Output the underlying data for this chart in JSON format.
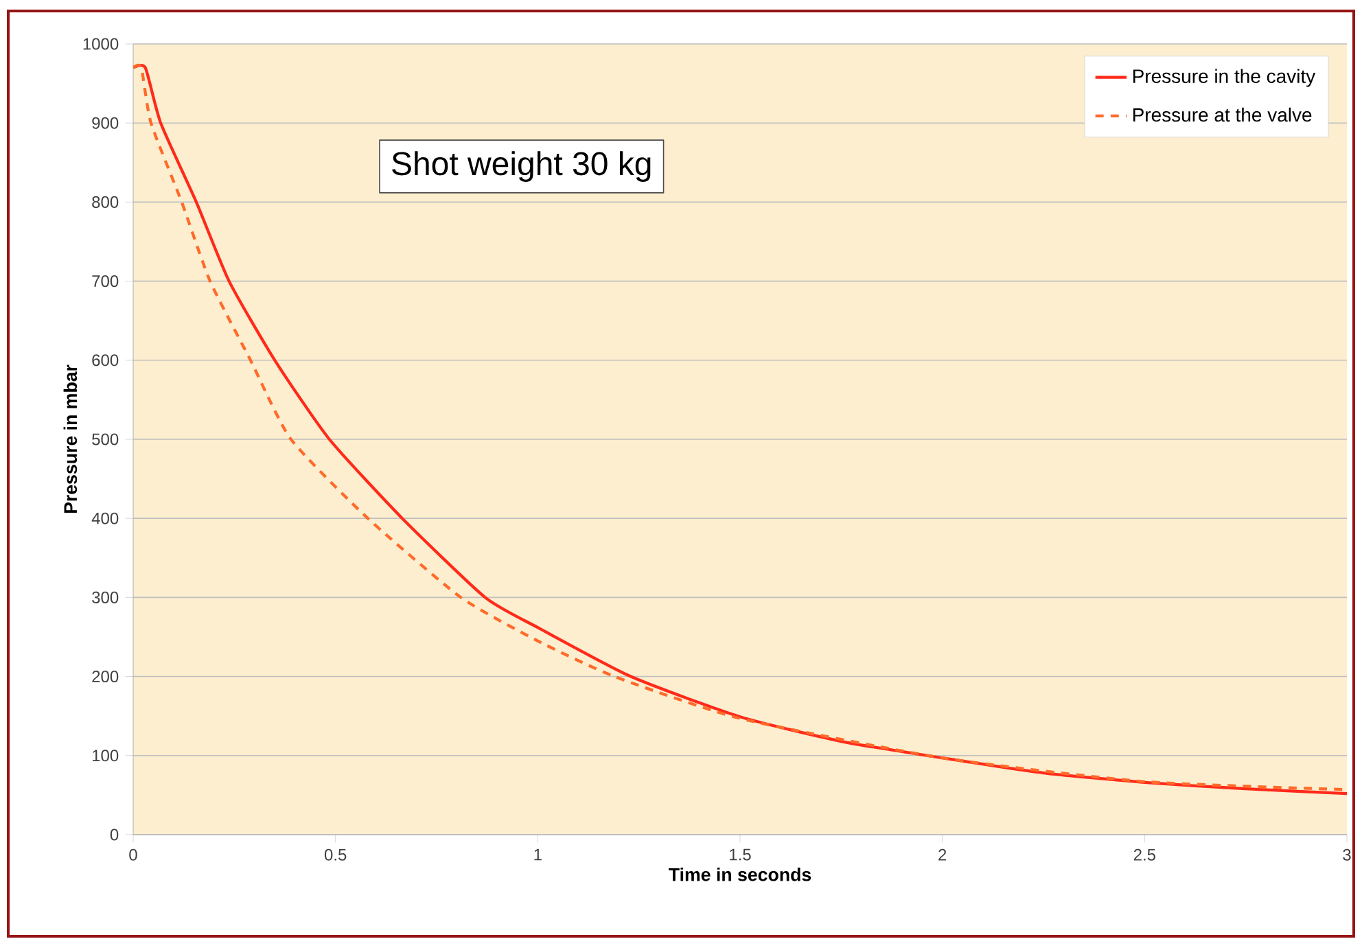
{
  "chart_data": {
    "type": "line",
    "xlabel": "Time in seconds",
    "ylabel": "Pressure in mbar",
    "annotations": [
      "Shot weight 30 kg"
    ],
    "xlim": [
      0,
      3
    ],
    "ylim": [
      0,
      1000
    ],
    "xticks": [
      0,
      0.5,
      1,
      1.5,
      2,
      2.5,
      3
    ],
    "yticks": [
      0,
      100,
      200,
      300,
      400,
      500,
      600,
      700,
      800,
      900,
      1000
    ],
    "grid": "y",
    "legend": "top right",
    "marker": "none",
    "series": [
      {
        "name": "Pressure in the cavity",
        "color": "#ff2a1a",
        "line_style": "solid",
        "x": [
          0,
          0.03,
          0.068,
          0.156,
          0.237,
          0.35,
          0.485,
          0.665,
          0.87,
          1.0,
          1.23,
          1.5,
          1.75,
          2.0,
          2.25,
          2.5,
          2.75,
          3.0
        ],
        "values": [
          970,
          970,
          900,
          800,
          700,
          600,
          500,
          400,
          300,
          262,
          200,
          149,
          118,
          97,
          78,
          66,
          58,
          52
        ]
      },
      {
        "name": "Pressure at the valve",
        "color": "#ff6a2a",
        "line_style": "dashed",
        "x": [
          0,
          0.02,
          0.044,
          0.12,
          0.19,
          0.29,
          0.39,
          0.58,
          0.81,
          1.0,
          1.19,
          1.5,
          2.0,
          2.5,
          3.0
        ],
        "values": [
          970,
          970,
          900,
          800,
          700,
          600,
          500,
          400,
          300,
          245,
          200,
          147,
          97,
          67,
          57
        ]
      }
    ]
  }
}
